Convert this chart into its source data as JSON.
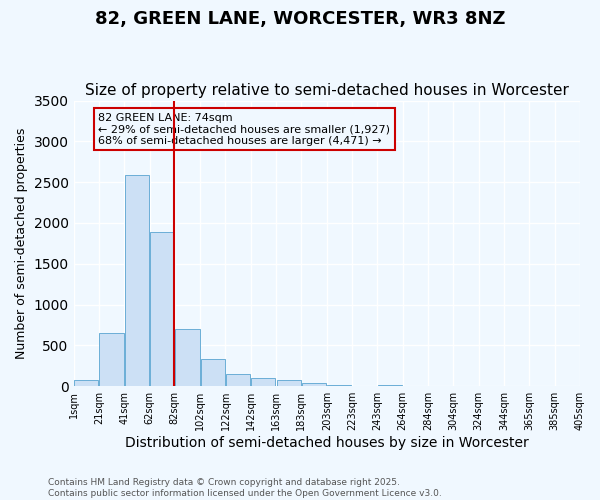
{
  "title_line1": "82, GREEN LANE, WORCESTER, WR3 8NZ",
  "title_line2": "Size of property relative to semi-detached houses in Worcester",
  "xlabel": "Distribution of semi-detached houses by size in Worcester",
  "ylabel": "Number of semi-detached properties",
  "bin_labels": [
    "1sqm",
    "21sqm",
    "41sqm",
    "62sqm",
    "82sqm",
    "102sqm",
    "122sqm",
    "142sqm",
    "163sqm",
    "183sqm",
    "203sqm",
    "223sqm",
    "243sqm",
    "264sqm",
    "284sqm",
    "304sqm",
    "324sqm",
    "344sqm",
    "365sqm",
    "385sqm",
    "405sqm"
  ],
  "bar_values": [
    70,
    650,
    2590,
    1890,
    700,
    330,
    150,
    100,
    80,
    40,
    20,
    5,
    10,
    5,
    5,
    0,
    0,
    0,
    0,
    0
  ],
  "bar_color": "#cce0f5",
  "bar_edge_color": "#6baed6",
  "red_line_x": 3.45,
  "red_line_color": "#cc0000",
  "annotation_text": "82 GREEN LANE: 74sqm\n← 29% of semi-detached houses are smaller (1,927)\n68% of semi-detached houses are larger (4,471) →",
  "annotation_box_color": "#cc0000",
  "annotation_fontsize": 8,
  "ylim": [
    0,
    3500
  ],
  "yticks": [
    0,
    500,
    1000,
    1500,
    2000,
    2500,
    3000,
    3500
  ],
  "background_color": "#f0f8ff",
  "grid_color": "#ffffff",
  "footer_text": "Contains HM Land Registry data © Crown copyright and database right 2025.\nContains public sector information licensed under the Open Government Licence v3.0.",
  "title_fontsize": 13,
  "subtitle_fontsize": 11,
  "xlabel_fontsize": 10,
  "ylabel_fontsize": 9,
  "footer_fontsize": 6.5
}
